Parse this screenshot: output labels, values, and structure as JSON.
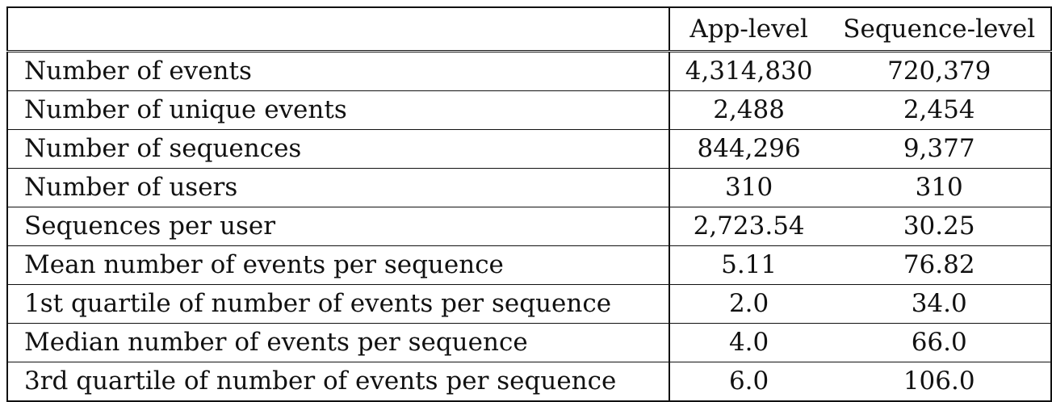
{
  "table": {
    "columns": [
      "",
      "App-level",
      "Sequence-level"
    ],
    "rows": [
      {
        "label": "Number of events",
        "app": "4,314,830",
        "seq": "720,379"
      },
      {
        "label": "Number of unique events",
        "app": "2,488",
        "seq": "2,454"
      },
      {
        "label": "Number of sequences",
        "app": "844,296",
        "seq": "9,377"
      },
      {
        "label": "Number of users",
        "app": "310",
        "seq": "310"
      },
      {
        "label": "Sequences per user",
        "app": "2,723.54",
        "seq": "30.25"
      },
      {
        "label": "Mean number of events per sequence",
        "app": "5.11",
        "seq": "76.82"
      },
      {
        "label": "1st quartile of number of events per sequence",
        "app": "2.0",
        "seq": "34.0"
      },
      {
        "label": "Median number of events per sequence",
        "app": "4.0",
        "seq": "66.0"
      },
      {
        "label": "3rd quartile of number of events per sequence",
        "app": "6.0",
        "seq": "106.0"
      }
    ]
  }
}
